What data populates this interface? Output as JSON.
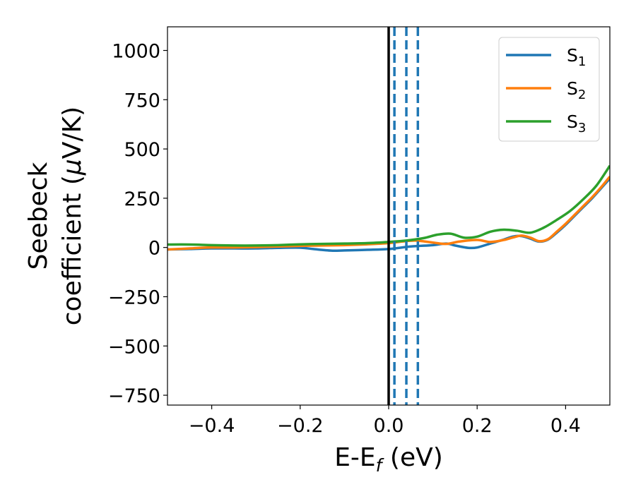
{
  "chart_data": {
    "type": "line",
    "title": "",
    "xlabel": {
      "main": "E-E",
      "sub": "f",
      "suffix": " (eV)"
    },
    "ylabel": {
      "line1": "Seebeck",
      "line2_prefix": "coefficient  (",
      "line2_greek": "μ",
      "line2_suffix": "V/K)"
    },
    "xlim": [
      -0.5,
      0.5
    ],
    "ylim": [
      -800,
      1120
    ],
    "xticks": [
      -0.4,
      -0.2,
      0.0,
      0.2,
      0.4
    ],
    "xtick_labels": [
      "−0.4",
      "−0.2",
      "0.0",
      "0.2",
      "0.4"
    ],
    "yticks": [
      -750,
      -500,
      -250,
      0,
      250,
      500,
      750,
      1000
    ],
    "ytick_labels": [
      "−750",
      "−500",
      "−250",
      "0",
      "250",
      "500",
      "750",
      "1000"
    ],
    "grid": false,
    "legend_position": "top-right",
    "fermi_line": {
      "x": 0.0,
      "color": "#000000"
    },
    "dashed_lines": {
      "x": [
        0.013,
        0.04,
        0.066
      ],
      "color": "#1f77b4"
    },
    "series": [
      {
        "name": "S",
        "sub": "1",
        "color": "#1f77b4",
        "x": [
          -0.5,
          -0.45,
          -0.4,
          -0.35,
          -0.3,
          -0.25,
          -0.2,
          -0.17,
          -0.13,
          -0.1,
          -0.05,
          0.0,
          0.05,
          0.1,
          0.13,
          0.15,
          0.18,
          0.2,
          0.23,
          0.26,
          0.28,
          0.3,
          0.32,
          0.34,
          0.36,
          0.38,
          0.4,
          0.42,
          0.44,
          0.46,
          0.48,
          0.5
        ],
        "y": [
          -10,
          -8,
          -5,
          -5,
          -5,
          -2,
          -1,
          -8,
          -16,
          -15,
          -12,
          -8,
          5,
          12,
          20,
          10,
          -2,
          0,
          20,
          40,
          55,
          58,
          45,
          30,
          40,
          75,
          115,
          160,
          205,
          250,
          300,
          350
        ]
      },
      {
        "name": "S",
        "sub": "2",
        "color": "#ff7f0e",
        "x": [
          -0.5,
          -0.45,
          -0.4,
          -0.35,
          -0.3,
          -0.25,
          -0.2,
          -0.15,
          -0.1,
          -0.05,
          0.0,
          0.03,
          0.06,
          0.1,
          0.13,
          0.16,
          0.2,
          0.23,
          0.26,
          0.28,
          0.3,
          0.32,
          0.34,
          0.36,
          0.38,
          0.4,
          0.42,
          0.44,
          0.46,
          0.48,
          0.5
        ],
        "y": [
          -10,
          -5,
          0,
          0,
          2,
          5,
          8,
          10,
          12,
          16,
          22,
          30,
          35,
          25,
          18,
          30,
          38,
          28,
          38,
          50,
          60,
          50,
          32,
          42,
          80,
          120,
          165,
          210,
          255,
          305,
          360
        ]
      },
      {
        "name": "S",
        "sub": "3",
        "color": "#2ca02c",
        "x": [
          -0.5,
          -0.45,
          -0.4,
          -0.35,
          -0.3,
          -0.25,
          -0.2,
          -0.15,
          -0.1,
          -0.05,
          0.0,
          0.04,
          0.08,
          0.11,
          0.14,
          0.17,
          0.2,
          0.23,
          0.26,
          0.29,
          0.32,
          0.35,
          0.38,
          0.41,
          0.44,
          0.47,
          0.5
        ],
        "y": [
          15,
          15,
          12,
          10,
          10,
          12,
          16,
          18,
          20,
          22,
          28,
          35,
          48,
          65,
          70,
          50,
          55,
          80,
          90,
          85,
          75,
          100,
          140,
          185,
          245,
          315,
          415
        ]
      }
    ]
  }
}
